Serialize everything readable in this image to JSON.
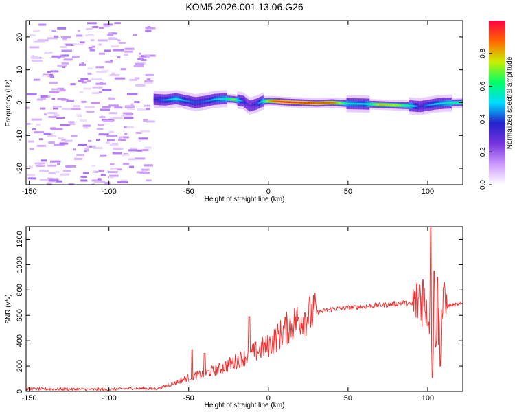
{
  "title": "KOM5.2026.001.13.06.G26",
  "chart_data": [
    {
      "type": "heatmap",
      "xlabel": "Height of straight line (km)",
      "ylabel": "Frequency (Hz)",
      "xlim": [
        -152,
        122
      ],
      "ylim": [
        -25,
        25
      ],
      "xticks": [
        -150,
        -100,
        -50,
        0,
        50,
        100
      ],
      "yticks": [
        -20,
        -10,
        0,
        10,
        20
      ],
      "colorbar": {
        "label": "Normalized spectral amplitude",
        "range": [
          0,
          1
        ],
        "ticks": [
          "0.0",
          "0.2",
          "0.4",
          "0.6",
          "0.8"
        ],
        "stops": [
          "#ffffff",
          "#cc99ff",
          "#7733dd",
          "#2222cc",
          "#00ddff",
          "#00ff66",
          "#ccee00",
          "#ff6600",
          "#ff0044"
        ]
      },
      "ridge": {
        "x": [
          -72,
          -65,
          -58,
          -52,
          -46,
          -40,
          -34,
          -28,
          -22,
          -16,
          -12,
          -8,
          -4,
          0,
          5,
          10,
          20,
          30,
          40,
          50,
          60,
          70,
          80,
          90,
          95,
          100,
          105,
          110,
          115,
          122
        ],
        "y": [
          1.0,
          0.8,
          1.2,
          0.6,
          0.0,
          0.4,
          1.0,
          1.2,
          1.0,
          0.5,
          -1.0,
          -0.5,
          0.4,
          0.5,
          0.4,
          0.2,
          0.0,
          -0.2,
          0.0,
          -0.3,
          -0.4,
          -0.6,
          -0.8,
          -1.0,
          -1.2,
          -0.8,
          -0.4,
          -0.2,
          -0.1,
          0.0
        ],
        "amplitude": [
          0.35,
          0.45,
          0.55,
          0.45,
          0.4,
          0.42,
          0.5,
          0.55,
          0.72,
          0.4,
          0.3,
          0.38,
          0.55,
          0.8,
          0.92,
          0.96,
          0.95,
          0.93,
          0.9,
          0.55,
          0.5,
          0.8,
          0.75,
          0.55,
          0.35,
          0.45,
          0.5,
          0.55,
          0.6,
          0.65
        ]
      },
      "noise_region": [
        -152,
        -75
      ]
    },
    {
      "type": "line",
      "xlabel": "Height of straight line (km)",
      "ylabel": "SNR (v/v)",
      "xlim": [
        -152,
        122
      ],
      "ylim": [
        0,
        1300
      ],
      "xticks": [
        -150,
        -100,
        -50,
        0,
        50,
        100
      ],
      "yticks": [
        0,
        200,
        400,
        600,
        800,
        1000,
        1200
      ],
      "series": [
        {
          "name": "SNR",
          "color": "#ee3333",
          "envelope_x": [
            -152,
            -100,
            -85,
            -70,
            -60,
            -50,
            -40,
            -30,
            -20,
            -10,
            0,
            10,
            20,
            30,
            40,
            60,
            80,
            85,
            90,
            95,
            100,
            103,
            108,
            110,
            115,
            122
          ],
          "envelope_y": [
            20,
            15,
            25,
            20,
            60,
            110,
            140,
            180,
            240,
            300,
            360,
            480,
            580,
            620,
            650,
            670,
            690,
            700,
            680,
            720,
            700,
            480,
            560,
            660,
            680,
            690
          ],
          "spikes": [
            [
              -12,
              590
            ],
            [
              -11,
              310
            ],
            [
              -40,
              300
            ],
            [
              -48,
              330
            ],
            [
              95,
              840
            ],
            [
              97,
              880
            ],
            [
              100,
              520
            ],
            [
              102,
              1290
            ],
            [
              103,
              110
            ],
            [
              104,
              950
            ],
            [
              106,
              900
            ],
            [
              108,
              200
            ],
            [
              110,
              820
            ]
          ]
        }
      ]
    }
  ]
}
